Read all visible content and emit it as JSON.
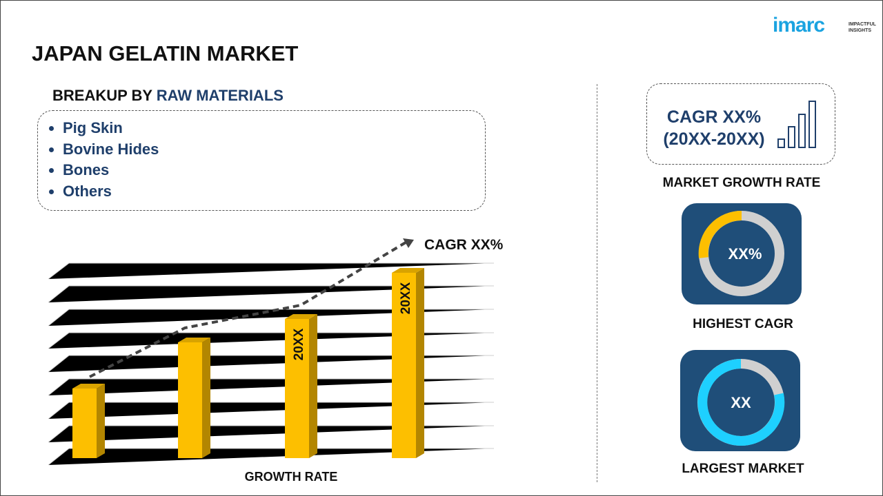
{
  "header": {
    "title": "JAPAN GELATIN MARKET",
    "logo": {
      "brand": "imarc",
      "tagline_1": "IMPACTFUL",
      "tagline_2": "INSIGHTS"
    }
  },
  "breakup": {
    "prefix": "BREAKUP BY",
    "dimension": "RAW MATERIALS",
    "items": [
      "Pig Skin",
      "Bovine Hides",
      "Bones",
      "Others"
    ]
  },
  "growth_chart": {
    "cagr_label": "CAGR XX%",
    "bar_labels": [
      "20XX",
      "20XX"
    ],
    "axis_label": "GROWTH RATE"
  },
  "market_growth": {
    "cagr": "CAGR XX%",
    "period": "(20XX-20XX)",
    "caption": "MARKET GROWTH RATE"
  },
  "highest_cagr": {
    "value": "XX%",
    "caption": "HIGHEST CAGR"
  },
  "largest_market": {
    "value": "XX",
    "caption": "LARGEST MARKET"
  }
}
